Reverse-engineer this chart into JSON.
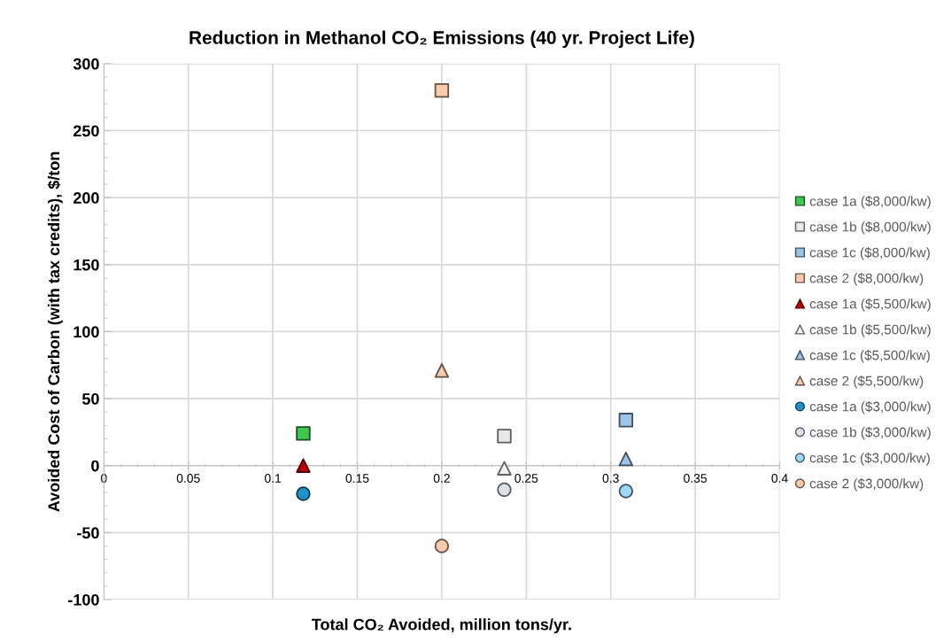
{
  "chart_data": {
    "type": "scatter",
    "title": "Reduction in Methanol CO₂ Emissions (40 yr. Project Life)",
    "xlabel": "Total CO₂ Avoided, million tons/yr.",
    "ylabel": "Avoided Cost of Carbon (with tax credits), $/ton",
    "xlim": [
      0,
      0.4
    ],
    "xticks": [
      0,
      0.05,
      0.1,
      0.15,
      0.2,
      0.25,
      0.3,
      0.35,
      0.4
    ],
    "ylim": [
      -100,
      300
    ],
    "yticks": [
      -100,
      -50,
      0,
      50,
      100,
      150,
      200,
      250,
      300
    ],
    "grid": true,
    "legend": "right",
    "series": [
      {
        "name": "case 1a ($8,000/kw)",
        "marker": "square",
        "color": "#3ec84e",
        "x": [
          0.118
        ],
        "values": [
          24
        ]
      },
      {
        "name": "case 1b ($8,000/kw)",
        "marker": "square",
        "color": "#e8e8e8",
        "x": [
          0.237
        ],
        "values": [
          22
        ]
      },
      {
        "name": "case 1c ($8,000/kw)",
        "marker": "square",
        "color": "#9dc3e6",
        "x": [
          0.309
        ],
        "values": [
          34
        ]
      },
      {
        "name": "case 2 ($8,000/kw)",
        "marker": "square",
        "color": "#f8cbad",
        "x": [
          0.2
        ],
        "values": [
          280
        ]
      },
      {
        "name": "case 1a ($5,500/kw)",
        "marker": "triangle",
        "color": "#c00000",
        "x": [
          0.118
        ],
        "values": [
          0
        ]
      },
      {
        "name": "case 1b ($5,500/kw)",
        "marker": "triangle",
        "color": "#f2f2f2",
        "x": [
          0.237
        ],
        "values": [
          -2
        ]
      },
      {
        "name": "case 1c ($5,500/kw)",
        "marker": "triangle",
        "color": "#9dc3e6",
        "x": [
          0.309
        ],
        "values": [
          5
        ]
      },
      {
        "name": "case 2 ($5,500/kw)",
        "marker": "triangle",
        "color": "#f8cbad",
        "x": [
          0.2
        ],
        "values": [
          71
        ]
      },
      {
        "name": "case 1a ($3,000/kw)",
        "marker": "circle",
        "color": "#1f93c8",
        "x": [
          0.118
        ],
        "values": [
          -21
        ]
      },
      {
        "name": "case 1b ($3,000/kw)",
        "marker": "circle",
        "color": "#dde2ea",
        "x": [
          0.237
        ],
        "values": [
          -18
        ]
      },
      {
        "name": "case 1c ($3,000/kw)",
        "marker": "circle",
        "color": "#9dd8f5",
        "x": [
          0.309
        ],
        "values": [
          -19
        ]
      },
      {
        "name": "case 2 ($3,000/kw)",
        "marker": "circle",
        "color": "#f8cbad",
        "x": [
          0.2
        ],
        "values": [
          -60
        ]
      }
    ]
  }
}
